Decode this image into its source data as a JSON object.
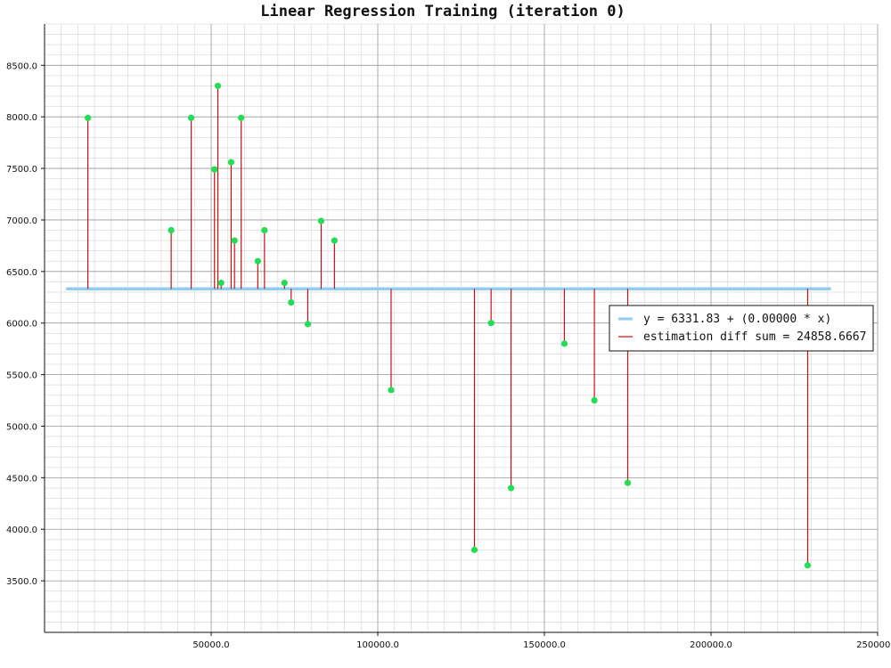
{
  "chart_data": {
    "type": "scatter",
    "title": "Linear Regression Training (iteration 0)",
    "xlabel": "",
    "ylabel": "",
    "xlim": [
      0,
      250000
    ],
    "ylim": [
      3000,
      8900
    ],
    "xticks": [
      50000,
      100000,
      150000,
      200000,
      250000
    ],
    "xtick_labels": [
      "50000.0",
      "100000.0",
      "150000.0",
      "200000.0",
      "250000.0"
    ],
    "yticks": [
      3500,
      4000,
      4500,
      5000,
      5500,
      6000,
      6500,
      7000,
      7500,
      8000,
      8500
    ],
    "ytick_labels": [
      "3500.0",
      "4000.0",
      "4500.0",
      "5000.0",
      "5500.0",
      "6000.0",
      "6500.0",
      "7000.0",
      "7500.0",
      "8000.0",
      "8500.0"
    ],
    "grid": true,
    "legend_position": "right",
    "regression_line": {
      "intercept": 6331.83,
      "slope": 0.0,
      "x_range": [
        6500,
        236000
      ]
    },
    "points": [
      {
        "x": 13000,
        "y": 7990
      },
      {
        "x": 38000,
        "y": 6900
      },
      {
        "x": 44000,
        "y": 7990
      },
      {
        "x": 51000,
        "y": 7490
      },
      {
        "x": 52000,
        "y": 8300
      },
      {
        "x": 53000,
        "y": 6390
      },
      {
        "x": 56000,
        "y": 7560
      },
      {
        "x": 57000,
        "y": 6800
      },
      {
        "x": 59000,
        "y": 7990
      },
      {
        "x": 64000,
        "y": 6600
      },
      {
        "x": 66000,
        "y": 6900
      },
      {
        "x": 72000,
        "y": 6390
      },
      {
        "x": 74000,
        "y": 6200
      },
      {
        "x": 79000,
        "y": 5990
      },
      {
        "x": 83000,
        "y": 6990
      },
      {
        "x": 87000,
        "y": 6800
      },
      {
        "x": 104000,
        "y": 5350
      },
      {
        "x": 129000,
        "y": 3800
      },
      {
        "x": 134000,
        "y": 6000
      },
      {
        "x": 140000,
        "y": 4400
      },
      {
        "x": 156000,
        "y": 5800
      },
      {
        "x": 165000,
        "y": 5250
      },
      {
        "x": 175000,
        "y": 4450
      },
      {
        "x": 229000,
        "y": 3650
      }
    ],
    "legend": [
      {
        "label": "y = 6331.83 + (0.00000 * x)",
        "color": "#90ceef"
      },
      {
        "label": "estimation diff sum = 24858.6667",
        "color": "#cc1111"
      }
    ],
    "colors": {
      "point": "#22dd55",
      "residual": "#cc1111",
      "regression": "#90ceef",
      "grid_major": "#999999",
      "grid_minor": "#dddddd"
    }
  }
}
